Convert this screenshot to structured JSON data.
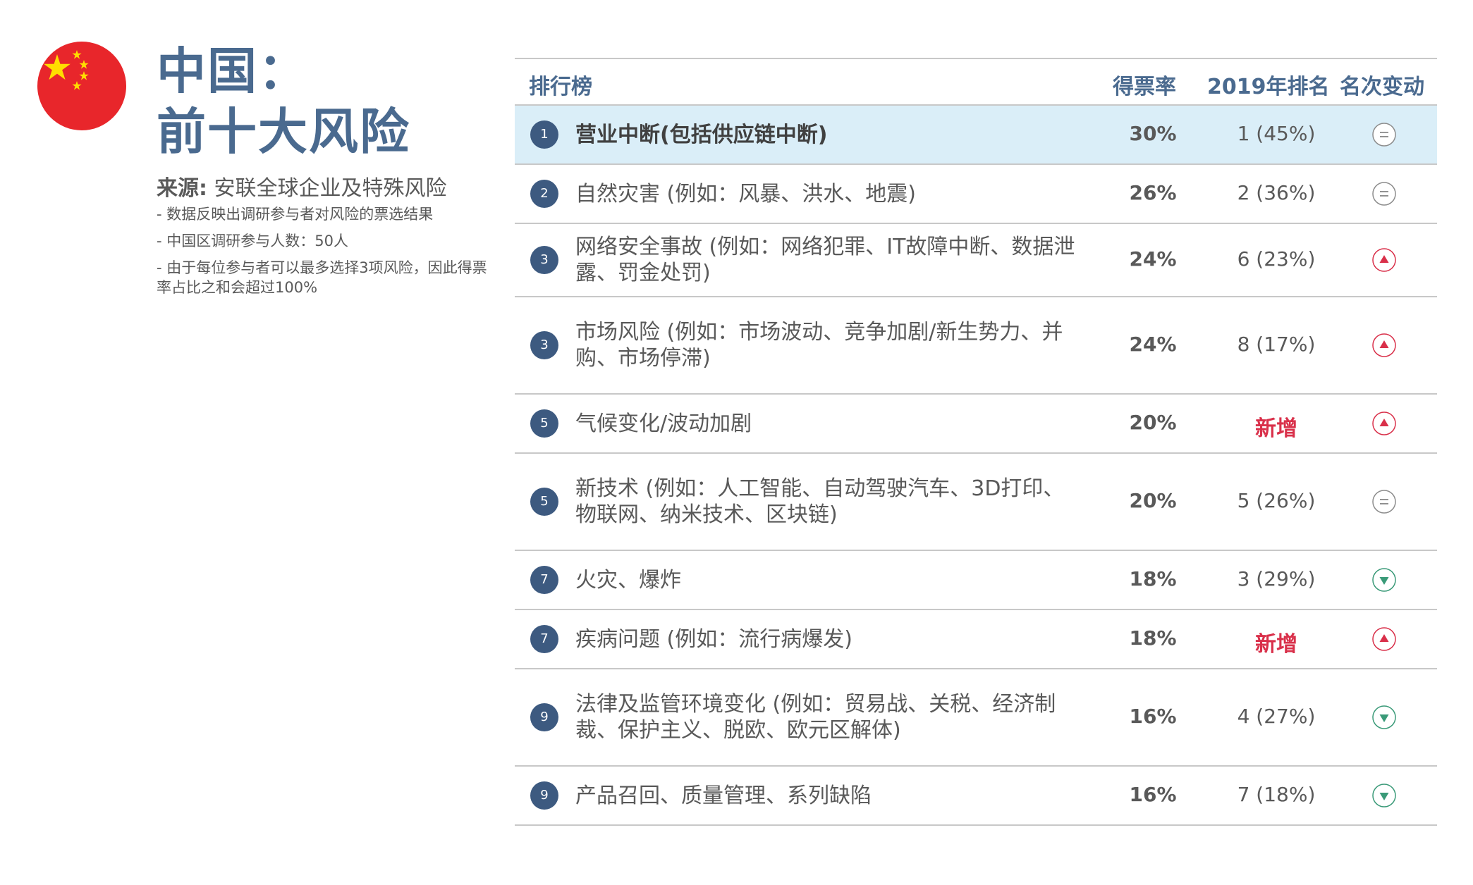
{
  "title_line1": "中国：",
  "title_line2": "前十大风险",
  "source_label": "来源:",
  "source_text": " 安联全球企业及特殊风险",
  "notes": [
    "- 数据反映出调研参与者对风险的票选结果",
    "- 中国区调研参与人数：50人",
    "- 由于每位参与者可以最多选择3项风险，因此得票率占比之和会超过100%"
  ],
  "table": {
    "headers": {
      "rank": "排行榜",
      "vote": "得票率",
      "prev": "2019年排名",
      "change": "名次变动"
    },
    "rows": [
      {
        "rank": "1",
        "risk": "营业中断(包括供应链中断)",
        "vote": "30%",
        "prev": "1 (45%)",
        "change": "same",
        "highlight": true
      },
      {
        "rank": "2",
        "risk": "自然灾害 (例如：风暴、洪水、地震)",
        "vote": "26%",
        "prev": "2 (36%)",
        "change": "same"
      },
      {
        "rank": "3",
        "risk": "网络安全事故 (例如：网络犯罪、IT故障中断、数据泄露、罚金处罚)",
        "vote": "24%",
        "prev": "6 (23%)",
        "change": "up"
      },
      {
        "rank": "3",
        "risk": "市场风险 (例如：市场波动、竞争加剧/新生势力、并购、市场停滞)",
        "vote": "24%",
        "prev": "8 (17%)",
        "change": "up"
      },
      {
        "rank": "5",
        "risk": "气候变化/波动加剧",
        "vote": "20%",
        "prev": "新增",
        "change": "up",
        "prev_new": true
      },
      {
        "rank": "5",
        "risk": "新技术 (例如：人工智能、自动驾驶汽车、3D打印、物联网、纳米技术、区块链)",
        "vote": "20%",
        "prev": "5 (26%)",
        "change": "same"
      },
      {
        "rank": "7",
        "risk": "火灾、爆炸",
        "vote": "18%",
        "prev": "3 (29%)",
        "change": "down"
      },
      {
        "rank": "7",
        "risk": "疾病问题 (例如：流行病爆发)",
        "vote": "18%",
        "prev": "新增",
        "change": "up",
        "prev_new": true
      },
      {
        "rank": "9",
        "risk": "法律及监管环境变化 (例如：贸易战、关税、经济制裁、保护主义、脱欧、欧元区解体)",
        "vote": "16%",
        "prev": "4 (27%)",
        "change": "down"
      },
      {
        "rank": "9",
        "risk": "产品召回、质量管理、系列缺陷",
        "vote": "16%",
        "prev": "7 (18%)",
        "change": "down"
      }
    ]
  },
  "colors": {
    "accent": "#4a6a8f",
    "badge": "#3d5a80",
    "up": "#d9304a",
    "down": "#3a9a78",
    "same": "#8c8c8c",
    "highlight": "#daeef8"
  },
  "icons": {
    "same": "equal-circle-icon",
    "up": "up-triangle-circle-icon",
    "down": "down-triangle-circle-icon"
  }
}
